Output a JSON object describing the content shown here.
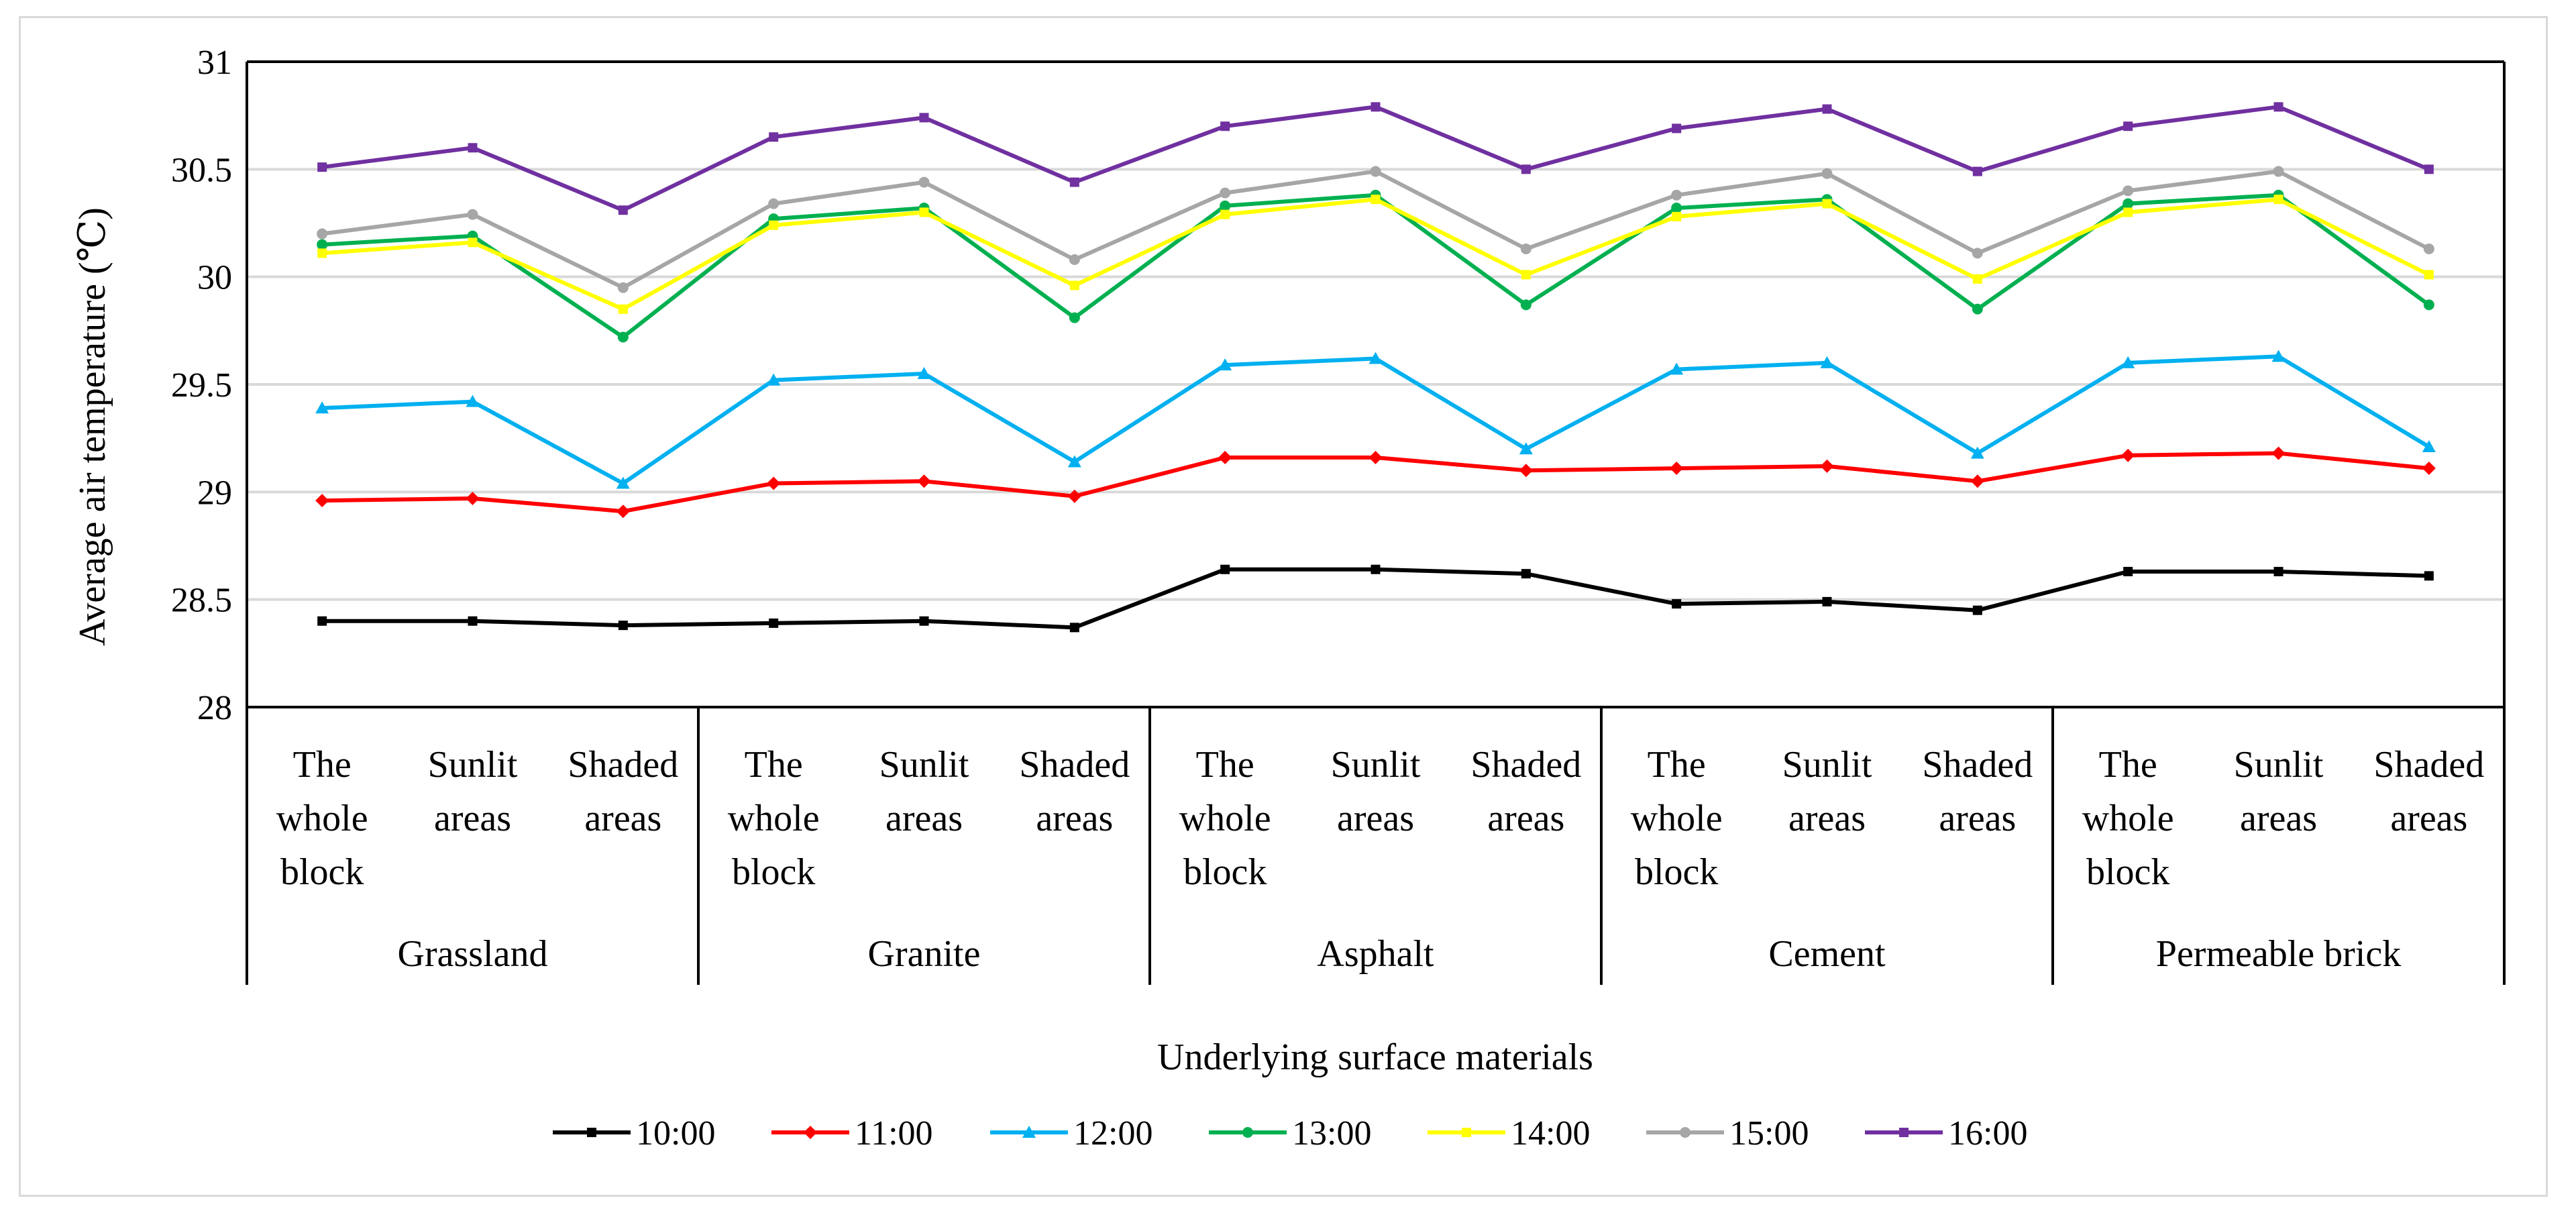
{
  "chart_data": {
    "type": "line",
    "title": "",
    "ylabel": "Average air temperature  (℃)",
    "xlabel": "Underlying surface materials",
    "ylim": [
      28,
      31
    ],
    "yticks": [
      28,
      28.5,
      29,
      29.5,
      30,
      30.5,
      31
    ],
    "ytick_labels": [
      "28",
      "28.5",
      "29",
      "29.5",
      "30",
      "30.5",
      "31"
    ],
    "grid": true,
    "legend_position": "bottom",
    "groups": [
      "Grassland",
      "Granite",
      "Asphalt",
      "Cement",
      "Permeable brick"
    ],
    "subcategories": [
      [
        "The",
        "whole",
        "block"
      ],
      [
        "Sunlit",
        "areas"
      ],
      [
        "Shaded",
        "areas"
      ]
    ],
    "series": [
      {
        "name": "10:00",
        "color": "#000000",
        "marker": "square",
        "values": [
          28.4,
          28.4,
          28.38,
          28.39,
          28.4,
          28.37,
          28.64,
          28.64,
          28.62,
          28.48,
          28.49,
          28.45,
          28.63,
          28.63,
          28.61
        ]
      },
      {
        "name": "11:00",
        "color": "#ff0000",
        "marker": "diamond",
        "values": [
          28.96,
          28.97,
          28.91,
          29.04,
          29.05,
          28.98,
          29.16,
          29.16,
          29.1,
          29.11,
          29.12,
          29.05,
          29.17,
          29.18,
          29.11
        ]
      },
      {
        "name": "12:00",
        "color": "#00b0f0",
        "marker": "triangle",
        "values": [
          29.39,
          29.42,
          29.04,
          29.52,
          29.55,
          29.14,
          29.59,
          29.62,
          29.2,
          29.57,
          29.6,
          29.18,
          29.6,
          29.63,
          29.21
        ]
      },
      {
        "name": "13:00",
        "color": "#00b050",
        "marker": "circle",
        "values": [
          30.15,
          30.19,
          29.72,
          30.27,
          30.32,
          29.81,
          30.33,
          30.38,
          29.87,
          30.32,
          30.36,
          29.85,
          30.34,
          30.38,
          29.87
        ]
      },
      {
        "name": "14:00",
        "color": "#ffff00",
        "marker": "square",
        "values": [
          30.11,
          30.16,
          29.85,
          30.24,
          30.3,
          29.96,
          30.29,
          30.36,
          30.01,
          30.28,
          30.34,
          29.99,
          30.3,
          30.36,
          30.01
        ]
      },
      {
        "name": "15:00",
        "color": "#a6a6a6",
        "marker": "circle",
        "values": [
          30.2,
          30.29,
          29.95,
          30.34,
          30.44,
          30.08,
          30.39,
          30.49,
          30.13,
          30.38,
          30.48,
          30.11,
          30.4,
          30.49,
          30.13
        ]
      },
      {
        "name": "16:00",
        "color": "#7030a0",
        "marker": "square",
        "values": [
          30.51,
          30.6,
          30.31,
          30.65,
          30.74,
          30.44,
          30.7,
          30.79,
          30.5,
          30.69,
          30.78,
          30.49,
          30.7,
          30.79,
          30.5
        ]
      }
    ]
  }
}
